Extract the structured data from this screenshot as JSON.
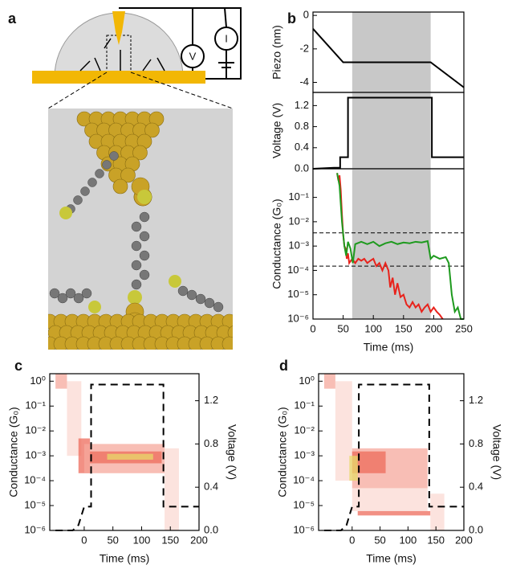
{
  "panels": {
    "a": "a",
    "b": "b",
    "c": "c",
    "d": "d"
  },
  "schematic": {
    "voltmeter": "V",
    "ammeter": "I"
  },
  "chart_data": [
    {
      "type": "line",
      "ylabel": "Piezo (nm)",
      "xlim": [
        0,
        250
      ],
      "ylim": [
        -4.6,
        0.2
      ],
      "yticks": [
        0,
        -2,
        -4
      ],
      "shade": [
        65,
        195
      ],
      "series": [
        {
          "color": "#000000",
          "x": [
            0,
            50,
            195,
            250
          ],
          "values": [
            -0.8,
            -2.8,
            -2.8,
            -4.3
          ]
        }
      ]
    },
    {
      "type": "line",
      "ylabel": "Voltage (V)",
      "xlim": [
        0,
        250
      ],
      "ylim": [
        0,
        1.45
      ],
      "yticks": [
        {
          "value": 0,
          "label": "0.0"
        },
        0.4,
        0.8,
        1.2
      ],
      "shade": [
        65,
        195
      ],
      "series": [
        {
          "color": "#000000",
          "x": [
            0,
            35,
            45,
            45,
            58,
            58,
            197,
            197,
            250
          ],
          "values": [
            0,
            0.02,
            0.02,
            0.22,
            0.22,
            1.35,
            1.35,
            0.22,
            0.22
          ]
        }
      ]
    },
    {
      "type": "line",
      "ylabel": "Conductance (G₀)",
      "xlabel": "Time (ms)",
      "log": true,
      "xlim": [
        0,
        250
      ],
      "ylim": [
        1e-06,
        1.5
      ],
      "xticks": [
        0,
        50,
        100,
        150,
        200,
        250
      ],
      "yticks": [
        {
          "value": 1e-06,
          "label": "10⁻⁶"
        },
        {
          "value": 1e-05,
          "label": "10⁻⁵"
        },
        {
          "value": 0.0001,
          "label": "10⁻⁴"
        },
        {
          "value": 0.001,
          "label": "10⁻³"
        },
        {
          "value": 0.01,
          "label": "10⁻²"
        },
        {
          "value": 0.1,
          "label": "10⁻¹"
        }
      ],
      "shade": [
        65,
        195
      ],
      "hlines": [
        0.0035,
        0.00015
      ],
      "series": [
        {
          "color": "#e8231c",
          "x": [
            40,
            42,
            44,
            46,
            48,
            50,
            52,
            54,
            56,
            58,
            60,
            65,
            70,
            75,
            80,
            85,
            90,
            95,
            100,
            105,
            110,
            115,
            120,
            125,
            128,
            132,
            136,
            140,
            145,
            150,
            155,
            160,
            165,
            170,
            175,
            180,
            185,
            190,
            195,
            200,
            205,
            210,
            215
          ],
          "values": [
            1,
            0.5,
            0.8,
            0.2,
            0.02,
            0.003,
            0.001,
            0.0008,
            0.0003,
            0.0005,
            0.0002,
            0.0003,
            0.0002,
            0.0003,
            0.00025,
            0.0003,
            0.0002,
            0.00025,
            0.0003,
            0.00015,
            0.0002,
            0.0001,
            0.0002,
            0.0001,
            2e-05,
            5e-05,
            1e-05,
            3e-05,
            8e-06,
            1e-05,
            4e-06,
            3e-06,
            5e-06,
            3e-06,
            4e-06,
            2e-06,
            3e-06,
            4e-06,
            2e-06,
            3e-06,
            2e-06,
            1.5e-06,
            1e-06
          ]
        },
        {
          "color": "#1e9a1e",
          "x": [
            40,
            44,
            48,
            52,
            55,
            58,
            62,
            66,
            70,
            80,
            90,
            100,
            110,
            120,
            130,
            140,
            150,
            160,
            170,
            180,
            190,
            195,
            200,
            210,
            220,
            225,
            230,
            235,
            240,
            245,
            250
          ],
          "values": [
            1,
            0.3,
            0.01,
            0.001,
            0.0004,
            0.0015,
            0.0008,
            0.0002,
            0.0012,
            0.0015,
            0.0012,
            0.0015,
            0.001,
            0.0013,
            0.0015,
            0.0012,
            0.0014,
            0.0013,
            0.0015,
            0.0014,
            0.0016,
            0.0003,
            0.0004,
            0.0003,
            0.00035,
            0.0002,
            1e-05,
            2e-06,
            3e-06,
            1e-06,
            1e-06
          ]
        }
      ]
    },
    {
      "type": "heatmap",
      "ylabel": "Conductance (G₀)",
      "xlabel": "Time (ms)",
      "y2label": "Voltage (V)",
      "log": true,
      "xlim": [
        -60,
        200
      ],
      "ylim": [
        1e-06,
        2
      ],
      "y2lim": [
        0,
        1.45
      ],
      "xticks": [
        0,
        50,
        100,
        150,
        200
      ],
      "yticks": [
        {
          "value": 1e-06,
          "label": "10⁻⁶"
        },
        {
          "value": 1e-05,
          "label": "10⁻⁵"
        },
        {
          "value": 0.0001,
          "label": "10⁻⁴"
        },
        {
          "value": 0.001,
          "label": "10⁻³"
        },
        {
          "value": 0.01,
          "label": "10⁻²"
        },
        {
          "value": 0.1,
          "label": "10⁻¹"
        },
        {
          "value": 1,
          "label": "10⁰"
        }
      ],
      "y2ticks": [
        {
          "value": 0,
          "label": "0.0"
        },
        0.4,
        0.8,
        1.2
      ],
      "palette": [
        "#fbd9d3",
        "#f6a89c",
        "#ee6b5b",
        "#e8d96a"
      ],
      "cells": [
        {
          "x": [
            -50,
            -30
          ],
          "y": [
            0.5,
            2
          ],
          "level": 2
        },
        {
          "x": [
            -30,
            -5
          ],
          "y": [
            0.001,
            1
          ],
          "level": 1
        },
        {
          "x": [
            -10,
            10
          ],
          "y": [
            0.0002,
            0.005
          ],
          "level": 3
        },
        {
          "x": [
            0,
            140
          ],
          "y": [
            0.0002,
            0.003
          ],
          "level": 2
        },
        {
          "x": [
            10,
            135
          ],
          "y": [
            0.0005,
            0.0015
          ],
          "level": 3
        },
        {
          "x": [
            40,
            120
          ],
          "y": [
            0.0007,
            0.0012
          ],
          "level": 4
        },
        {
          "x": [
            140,
            165
          ],
          "y": [
            1e-06,
            0.002
          ],
          "level": 1
        }
      ],
      "series": [
        {
          "axis": "y2",
          "color": "#000000",
          "dash": true,
          "x": [
            -50,
            -20,
            -10,
            0,
            12,
            12,
            138,
            138,
            200
          ],
          "values": [
            0,
            0,
            0.05,
            0.22,
            0.22,
            1.35,
            1.35,
            0.22,
            0.22
          ]
        }
      ]
    },
    {
      "type": "heatmap",
      "ylabel": "Conductance (G₀)",
      "xlabel": "Time (ms)",
      "y2label": "Voltage (V)",
      "log": true,
      "xlim": [
        -60,
        200
      ],
      "ylim": [
        1e-06,
        2
      ],
      "y2lim": [
        0,
        1.45
      ],
      "xticks": [
        0,
        50,
        100,
        150,
        200
      ],
      "yticks": [
        {
          "value": 1e-06,
          "label": "10⁻⁶"
        },
        {
          "value": 1e-05,
          "label": "10⁻⁵"
        },
        {
          "value": 0.0001,
          "label": "10⁻⁴"
        },
        {
          "value": 0.001,
          "label": "10⁻³"
        },
        {
          "value": 0.01,
          "label": "10⁻²"
        },
        {
          "value": 0.1,
          "label": "10⁻¹"
        },
        {
          "value": 1,
          "label": "10⁰"
        }
      ],
      "y2ticks": [
        {
          "value": 0,
          "label": "0.0"
        },
        0.4,
        0.8,
        1.2
      ],
      "palette": [
        "#fbd9d3",
        "#f6a89c",
        "#ee6b5b",
        "#e8d96a"
      ],
      "cells": [
        {
          "x": [
            -50,
            -30
          ],
          "y": [
            0.5,
            2
          ],
          "level": 2
        },
        {
          "x": [
            -30,
            0
          ],
          "y": [
            0.0001,
            1
          ],
          "level": 1
        },
        {
          "x": [
            0,
            135
          ],
          "y": [
            6e-06,
            5e-05
          ],
          "level": 1
        },
        {
          "x": [
            0,
            135
          ],
          "y": [
            5e-05,
            0.002
          ],
          "level": 2
        },
        {
          "x": [
            0,
            60
          ],
          "y": [
            0.0002,
            0.0015
          ],
          "level": 3
        },
        {
          "x": [
            -5,
            10
          ],
          "y": [
            0.0001,
            0.001
          ],
          "level": 4
        },
        {
          "x": [
            10,
            140
          ],
          "y": [
            4e-06,
            6e-06
          ],
          "level": 3
        },
        {
          "x": [
            140,
            165
          ],
          "y": [
            1e-06,
            3e-05
          ],
          "level": 1
        }
      ],
      "series": [
        {
          "axis": "y2",
          "color": "#000000",
          "dash": true,
          "x": [
            -50,
            -20,
            -10,
            0,
            12,
            12,
            138,
            138,
            200
          ],
          "values": [
            0,
            0,
            0.05,
            0.22,
            0.22,
            1.35,
            1.35,
            0.22,
            0.22
          ]
        }
      ]
    }
  ]
}
